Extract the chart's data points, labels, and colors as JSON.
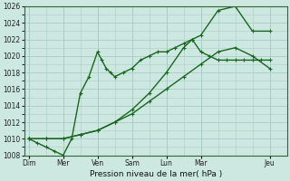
{
  "background_color": "#cce8e0",
  "grid_color": "#aaccc4",
  "line_color": "#1a6620",
  "xlabel": "Pression niveau de la mer( hPa )",
  "ylim": [
    1008,
    1026
  ],
  "yticks": [
    1008,
    1010,
    1012,
    1014,
    1016,
    1018,
    1020,
    1022,
    1024,
    1026
  ],
  "x_day_labels": [
    "Dim",
    "Mer",
    "Ven",
    "Sam",
    "Lun",
    "Mar",
    "Jeu"
  ],
  "x_day_positions": [
    0,
    4,
    8,
    12,
    16,
    20,
    28
  ],
  "xlim": [
    -0.5,
    30
  ],
  "series1_x": [
    0,
    1,
    2,
    3,
    4,
    5,
    6,
    7,
    8,
    8.5,
    9,
    9.5,
    10,
    11,
    12,
    13,
    14,
    15,
    16,
    17,
    18,
    19,
    20,
    21,
    22,
    23,
    24,
    25,
    26,
    27,
    28
  ],
  "series1_y": [
    1010,
    1009.5,
    1009,
    1008.5,
    1008,
    1010,
    1015.5,
    1017.5,
    1020.5,
    1019.5,
    1018.5,
    1018,
    1017.5,
    1018,
    1018.5,
    1019.5,
    1020,
    1020.5,
    1020.5,
    1021,
    1021.5,
    1022,
    1020.5,
    1020,
    1019.5,
    1019.5,
    1019.5,
    1019.5,
    1019.5,
    1019.5,
    1019.5
  ],
  "series2_x": [
    0,
    2,
    4,
    6,
    8,
    10,
    12,
    14,
    16,
    18,
    20,
    22,
    24,
    26,
    28
  ],
  "series2_y": [
    1010,
    1010,
    1010,
    1010.5,
    1011,
    1012,
    1013,
    1014.5,
    1016,
    1017.5,
    1019,
    1020.5,
    1021,
    1020,
    1018.5
  ],
  "series3_x": [
    0,
    2,
    4,
    6,
    8,
    10,
    12,
    14,
    16,
    18,
    19,
    20,
    22,
    24,
    26,
    28
  ],
  "series3_y": [
    1010,
    1010,
    1010,
    1010.5,
    1011,
    1012,
    1013.5,
    1015.5,
    1018,
    1021,
    1022,
    1022.5,
    1025.5,
    1026,
    1023,
    1023
  ]
}
